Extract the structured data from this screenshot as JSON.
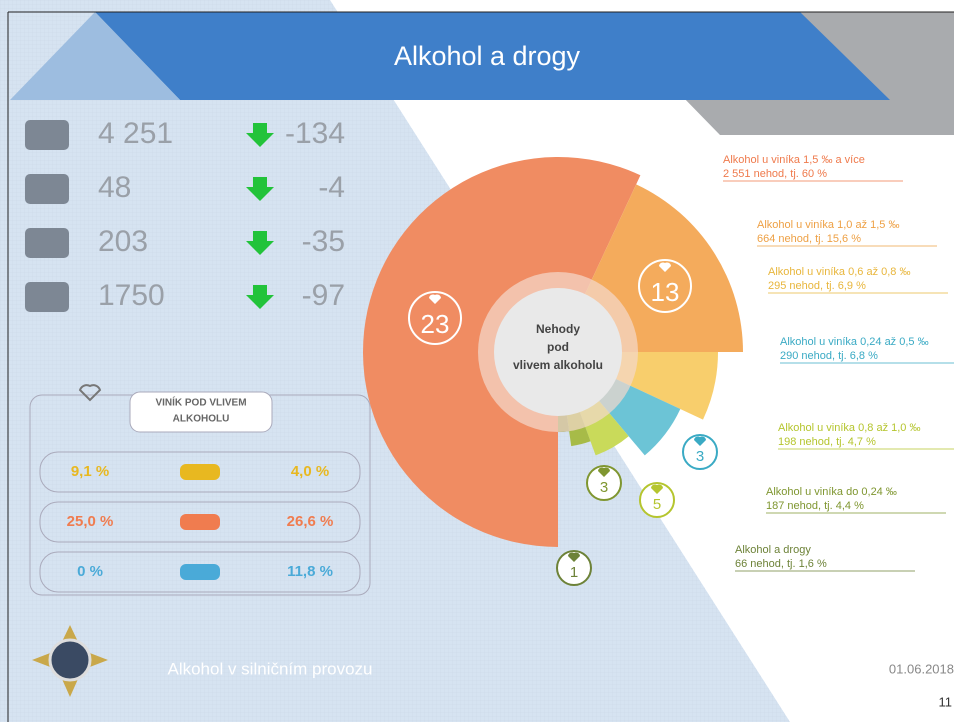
{
  "header": {
    "title": "Alkohol a drogy"
  },
  "stats": [
    {
      "value": "4 251",
      "change": "-134"
    },
    {
      "value": "48",
      "change": "-4"
    },
    {
      "value": "203",
      "change": "-35"
    },
    {
      "value": "1750",
      "change": "-97"
    }
  ],
  "culprit": {
    "title": [
      "VINÍK POD VLIVEM",
      "ALKOHOLU"
    ],
    "rows": [
      [
        "9,1 %",
        "4,0 %"
      ],
      [
        "25,0 %",
        "26,6 %"
      ],
      [
        "0 %",
        "11,8 %"
      ]
    ]
  },
  "chart": {
    "center_label": [
      "Nehody",
      "pod",
      "vlivem alkoholu"
    ],
    "segments": [
      {
        "title": "Alkohol u viníka  1,5 ‰ a více",
        "detail": "2 551 nehod, tj. 60 %",
        "deaths": "23"
      },
      {
        "title": "Alkohol u viníka 1,0 až 1,5 ‰",
        "detail": "664 nehod, tj. 15,6 %",
        "deaths": "13"
      },
      {
        "title": "Alkohol u viníka 0,6 až 0,8 ‰",
        "detail": "295 nehod, tj. 6,9 %"
      },
      {
        "title": "Alkohol u viníka 0,24 až 0,5 ‰",
        "detail": "290 nehod, tj. 6,8 %",
        "deaths": "3"
      },
      {
        "title": "Alkohol u viníka 0,8 až 1,0 ‰",
        "detail": "198 nehod, tj. 4,7 %",
        "deaths": "5"
      },
      {
        "title": "Alkohol u viníka do 0,24 ‰",
        "detail": "187 nehod, tj. 4,4 %",
        "deaths": "3"
      },
      {
        "title": "Alkohol a drogy",
        "detail": "66 nehod, tj. 1,6 %",
        "deaths": "1"
      }
    ]
  },
  "footer": {
    "caption": "Alkohol v silničním provozu",
    "date": "01.06.2018",
    "page": "11"
  }
}
